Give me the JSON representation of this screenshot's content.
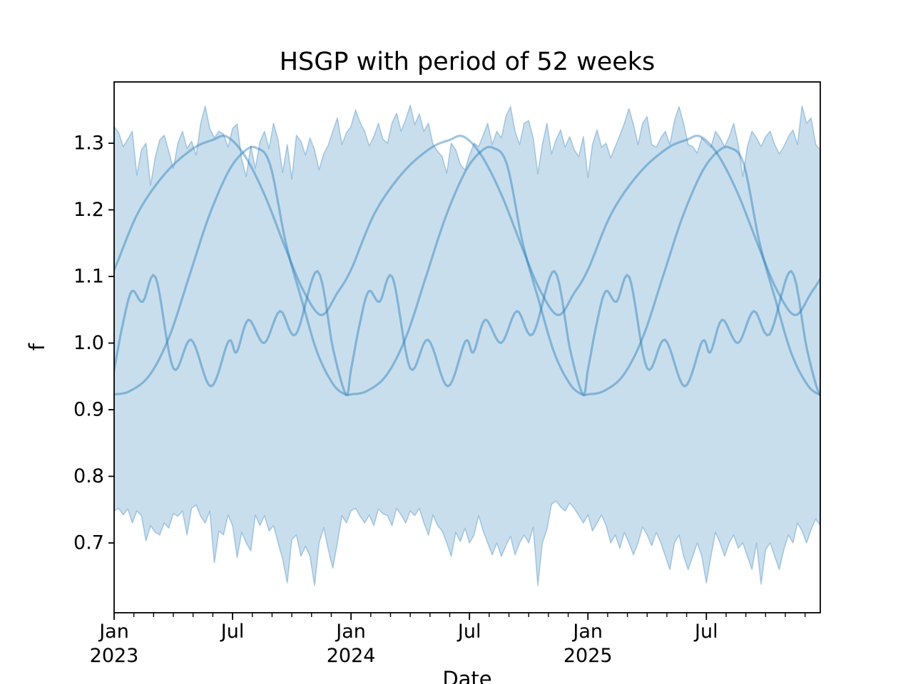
{
  "figure": {
    "title": "HSGP with period of 52 weeks",
    "xlabel": "Date",
    "ylabel": "f"
  },
  "colors": {
    "accent": "#1f77b4",
    "band_fill": "rgba(31,119,180,0.24)",
    "band_edge": "rgba(31,119,180,0.32)",
    "sample_line": "rgba(31,119,180,0.42)",
    "axis": "#000000",
    "background": "#ffffff"
  },
  "chart_data": {
    "type": "line",
    "title": "HSGP with period of 52 weeks",
    "xlabel": "Date",
    "ylabel": "f",
    "period_weeks": 52,
    "xlim_months": [
      0,
      35.77
    ],
    "ylim": [
      0.5952,
      1.392
    ],
    "grid": false,
    "legend": "none",
    "x_major_ticks": [
      {
        "month": 0,
        "line1": "Jan",
        "line2": "2023"
      },
      {
        "month": 6,
        "line1": "Jul",
        "line2": ""
      },
      {
        "month": 12,
        "line1": "Jan",
        "line2": "2024"
      },
      {
        "month": 18,
        "line1": "Jul",
        "line2": ""
      },
      {
        "month": 24,
        "line1": "Jan",
        "line2": "2025"
      },
      {
        "month": 30,
        "line1": "Jul",
        "line2": ""
      }
    ],
    "x_minor_tick_every_months": 1,
    "y_ticks": [
      {
        "value": 0.7,
        "label": "0.7"
      },
      {
        "value": 0.8,
        "label": "0.8"
      },
      {
        "value": 0.9,
        "label": "0.9"
      },
      {
        "value": 1.0,
        "label": "1.0"
      },
      {
        "value": 1.1,
        "label": "1.1"
      },
      {
        "value": 1.2,
        "label": "1.2"
      },
      {
        "value": 1.3,
        "label": "1.3"
      }
    ],
    "band": {
      "name": "uncertainty-band",
      "x_weeks_span": 155,
      "upper": [
        1.325,
        1.316,
        1.295,
        1.306,
        1.318,
        1.252,
        1.29,
        1.3,
        1.237,
        1.278,
        1.305,
        1.312,
        1.288,
        1.262,
        1.3,
        1.318,
        1.292,
        1.303,
        1.282,
        1.33,
        1.356,
        1.322,
        1.308,
        1.318,
        1.314,
        1.294,
        1.322,
        1.329,
        1.276,
        1.25,
        1.296,
        1.262,
        1.302,
        1.318,
        1.292,
        1.33,
        1.305,
        1.256,
        1.298,
        1.246,
        1.312,
        1.303,
        1.282,
        1.308,
        1.29,
        1.26,
        1.284,
        1.297,
        1.318,
        1.338,
        1.298,
        1.316,
        1.325,
        1.35,
        1.331,
        1.318,
        1.296,
        1.31,
        1.33,
        1.306,
        1.3,
        1.33,
        1.345,
        1.318,
        1.336,
        1.357,
        1.328,
        1.344,
        1.318,
        1.33,
        1.298,
        1.288,
        1.28,
        1.255,
        1.3,
        1.29,
        1.268,
        1.26,
        1.282,
        1.3,
        1.295,
        1.312,
        1.33,
        1.298,
        1.318,
        1.308,
        1.34,
        1.355,
        1.318,
        1.298,
        1.33,
        1.334,
        1.308,
        1.254,
        1.298,
        1.33,
        1.284,
        1.305,
        1.32,
        1.294,
        1.31,
        1.29,
        1.28,
        1.31,
        1.248,
        1.298,
        1.32,
        1.294,
        1.3,
        1.278,
        1.295,
        1.312,
        1.33,
        1.352,
        1.328,
        1.298,
        1.33,
        1.34,
        1.298,
        1.294,
        1.308,
        1.318,
        1.298,
        1.334,
        1.355,
        1.33,
        1.298,
        1.295,
        1.285,
        1.308,
        1.3,
        1.294,
        1.318,
        1.308,
        1.295,
        1.31,
        1.33,
        1.298,
        1.25,
        1.295,
        1.318,
        1.308,
        1.295,
        1.31,
        1.318,
        1.298,
        1.284,
        1.295,
        1.31,
        1.32,
        1.298,
        1.356,
        1.33,
        1.338,
        1.298,
        1.29
      ],
      "lower": [
        0.748,
        0.752,
        0.742,
        0.751,
        0.73,
        0.748,
        0.741,
        0.703,
        0.726,
        0.716,
        0.712,
        0.73,
        0.722,
        0.744,
        0.74,
        0.748,
        0.712,
        0.752,
        0.757,
        0.74,
        0.73,
        0.748,
        0.67,
        0.718,
        0.712,
        0.742,
        0.726,
        0.678,
        0.716,
        0.7,
        0.688,
        0.742,
        0.726,
        0.741,
        0.718,
        0.726,
        0.7,
        0.676,
        0.64,
        0.705,
        0.712,
        0.68,
        0.695,
        0.68,
        0.636,
        0.7,
        0.723,
        0.69,
        0.662,
        0.7,
        0.741,
        0.73,
        0.748,
        0.752,
        0.74,
        0.73,
        0.742,
        0.726,
        0.751,
        0.744,
        0.741,
        0.726,
        0.752,
        0.742,
        0.73,
        0.748,
        0.741,
        0.752,
        0.73,
        0.712,
        0.742,
        0.726,
        0.718,
        0.7,
        0.68,
        0.716,
        0.702,
        0.722,
        0.7,
        0.712,
        0.741,
        0.718,
        0.7,
        0.682,
        0.7,
        0.68,
        0.696,
        0.71,
        0.682,
        0.7,
        0.712,
        0.7,
        0.724,
        0.636,
        0.7,
        0.72,
        0.758,
        0.763,
        0.754,
        0.748,
        0.76,
        0.752,
        0.741,
        0.73,
        0.742,
        0.718,
        0.73,
        0.742,
        0.726,
        0.7,
        0.712,
        0.692,
        0.716,
        0.7,
        0.682,
        0.7,
        0.724,
        0.712,
        0.696,
        0.716,
        0.7,
        0.68,
        0.66,
        0.7,
        0.712,
        0.68,
        0.66,
        0.68,
        0.7,
        0.68,
        0.64,
        0.68,
        0.716,
        0.7,
        0.68,
        0.7,
        0.712,
        0.692,
        0.7,
        0.68,
        0.66,
        0.7,
        0.638,
        0.69,
        0.7,
        0.68,
        0.66,
        0.69,
        0.712,
        0.7,
        0.73,
        0.718,
        0.7,
        0.72,
        0.736,
        0.726
      ]
    },
    "samples": [
      {
        "name": "gp-sample-smooth-early-peak",
        "period_months": 12,
        "keyframes_month_value": [
          [
            0.0,
            1.11
          ],
          [
            1.2,
            1.195
          ],
          [
            2.6,
            1.255
          ],
          [
            4.0,
            1.292
          ],
          [
            5.0,
            1.305
          ],
          [
            5.7,
            1.31
          ],
          [
            6.6,
            1.282
          ],
          [
            7.6,
            1.224
          ],
          [
            8.7,
            1.141
          ],
          [
            9.6,
            1.078
          ],
          [
            10.5,
            1.042
          ],
          [
            11.3,
            1.075
          ]
        ]
      },
      {
        "name": "gp-sample-smooth-late-peak",
        "period_months": 12,
        "keyframes_month_value": [
          [
            0.0,
            0.923
          ],
          [
            0.8,
            0.928
          ],
          [
            1.8,
            0.952
          ],
          [
            2.8,
            1.01
          ],
          [
            3.8,
            1.1
          ],
          [
            4.8,
            1.19
          ],
          [
            5.8,
            1.258
          ],
          [
            6.6,
            1.288
          ],
          [
            7.2,
            1.293
          ],
          [
            7.9,
            1.268
          ],
          [
            8.7,
            1.15
          ],
          [
            9.5,
            1.065
          ],
          [
            10.3,
            0.985
          ],
          [
            11.1,
            0.938
          ],
          [
            11.7,
            0.923
          ]
        ]
      },
      {
        "name": "gp-sample-wiggly",
        "period_months": 12,
        "keyframes_month_value": [
          [
            0.0,
            0.96
          ],
          [
            0.45,
            1.03
          ],
          [
            0.9,
            1.078
          ],
          [
            1.45,
            1.062
          ],
          [
            2.1,
            1.099
          ],
          [
            3.0,
            0.962
          ],
          [
            3.9,
            1.005
          ],
          [
            4.9,
            0.935
          ],
          [
            5.8,
            1.003
          ],
          [
            6.2,
            0.986
          ],
          [
            6.8,
            1.035
          ],
          [
            7.6,
            1.0
          ],
          [
            8.4,
            1.048
          ],
          [
            9.2,
            1.013
          ],
          [
            10.3,
            1.108
          ],
          [
            11.1,
            0.99
          ],
          [
            11.75,
            0.923
          ]
        ]
      }
    ]
  }
}
